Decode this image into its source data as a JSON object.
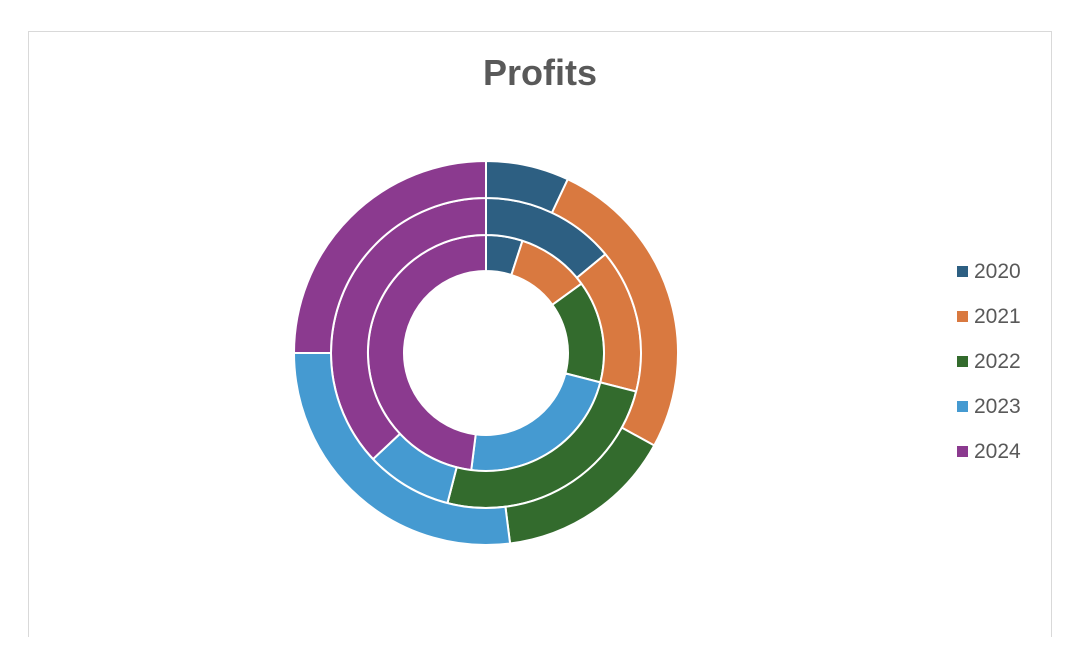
{
  "chart_data": {
    "type": "doughnut",
    "title": "Profits",
    "legend_position": "right",
    "series_colors": {
      "2020": "#2d5f82",
      "2021": "#d97940",
      "2022": "#336b2d",
      "2023": "#459ad1",
      "2024": "#8b3a8f"
    },
    "categories": [
      "2020",
      "2021",
      "2022",
      "2023",
      "2024"
    ],
    "rings": [
      {
        "ring": "inner",
        "values": [
          5,
          10,
          14,
          23,
          48
        ]
      },
      {
        "ring": "middle",
        "values": [
          14,
          15,
          25,
          9,
          37
        ]
      },
      {
        "ring": "outer",
        "values": [
          7,
          26,
          15,
          27,
          25
        ]
      }
    ]
  }
}
